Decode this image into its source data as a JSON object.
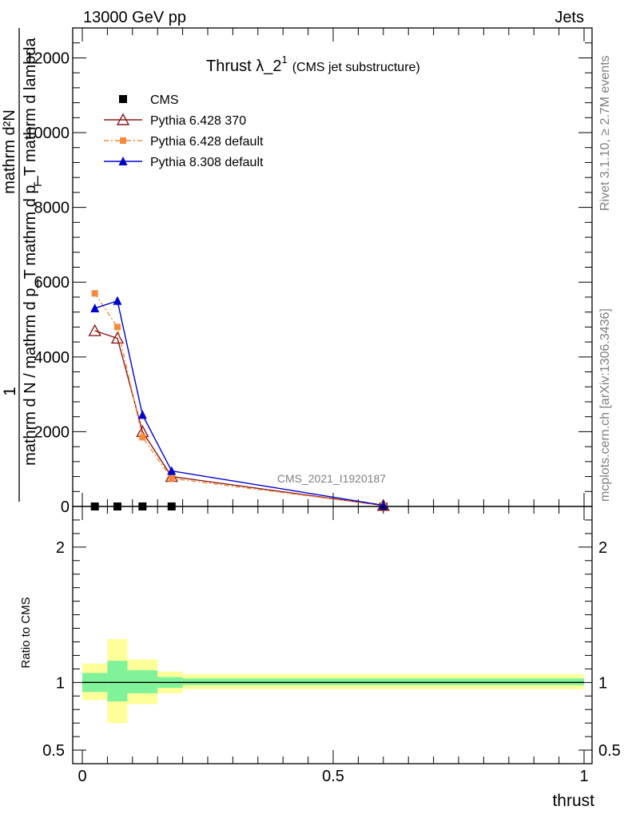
{
  "header": {
    "energy_label": "13000 GeV pp",
    "category_label": "Jets"
  },
  "side": {
    "rivet_label": "Rivet 3.1.10, ≥ 2.7M events",
    "mcplots_label": "mcplots.cern.ch [arXiv:1306.3436]"
  },
  "watermark": "CMS_2021_I1920187",
  "chart_data": [
    {
      "type": "line",
      "title": "Thrust λ_2",
      "title_sup": "1",
      "subtitle": "(CMS jet substructure)",
      "ylabel_numerator": "mathrm d²N",
      "ylabel_denominator": "mathrm d p_T mathrm d lambda",
      "ylabel_subscript": "T",
      "ylabel_left_numerator": "1",
      "ylabel_left_denominator": "mathrm d N / mathrm d p_T",
      "xlim": [
        0,
        1
      ],
      "ylim": [
        0,
        12800
      ],
      "y_ticks": [
        0,
        2000,
        4000,
        6000,
        8000,
        10000,
        12000
      ],
      "legend_position": "top-left",
      "series": [
        {
          "name": "CMS",
          "color": "#000000",
          "marker": "square",
          "x": [
            0.025,
            0.07,
            0.12,
            0.178,
            0.6
          ],
          "y": [
            0,
            0,
            0,
            0,
            0
          ]
        },
        {
          "name": "Pythia 6.428 370",
          "color": "#8b1a1a",
          "marker": "open-triangle",
          "line": "solid",
          "x": [
            0.025,
            0.07,
            0.12,
            0.178,
            0.6
          ],
          "y": [
            4700,
            4500,
            2000,
            800,
            25
          ]
        },
        {
          "name": "Pythia 6.428 default",
          "color": "#f58a3a",
          "marker": "small-square",
          "line": "dashdot",
          "x": [
            0.025,
            0.07,
            0.12,
            0.178,
            0.6
          ],
          "y": [
            5700,
            4800,
            1850,
            750,
            25
          ]
        },
        {
          "name": "Pythia 8.308 default",
          "color": "#0000cc",
          "marker": "filled-triangle",
          "line": "solid",
          "x": [
            0.025,
            0.07,
            0.12,
            0.178,
            0.6
          ],
          "y": [
            5300,
            5500,
            2450,
            950,
            30
          ]
        }
      ]
    },
    {
      "type": "area",
      "ylabel": "Ratio to CMS",
      "xlabel": "thrust",
      "xlim": [
        0,
        1
      ],
      "ylim": [
        0.4,
        2.3
      ],
      "y_ticks": [
        0.5,
        1,
        2
      ],
      "x_ticks": [
        0,
        0.5,
        1
      ],
      "reference_line": 1,
      "bins": [
        {
          "lo": 0.0,
          "hi": 0.05,
          "inner": [
            0.93,
            1.07
          ],
          "outer": [
            0.87,
            1.14
          ]
        },
        {
          "lo": 0.05,
          "hi": 0.09,
          "inner": [
            0.86,
            1.16
          ],
          "outer": [
            0.7,
            1.32
          ]
        },
        {
          "lo": 0.09,
          "hi": 0.15,
          "inner": [
            0.92,
            1.09
          ],
          "outer": [
            0.84,
            1.17
          ]
        },
        {
          "lo": 0.15,
          "hi": 0.2,
          "inner": [
            0.96,
            1.04
          ],
          "outer": [
            0.92,
            1.08
          ]
        },
        {
          "lo": 0.2,
          "hi": 1.0,
          "inner": [
            0.98,
            1.03
          ],
          "outer": [
            0.95,
            1.06
          ]
        }
      ],
      "band_colors": {
        "inner": "#7ff29a",
        "outer": "#ffff99"
      }
    }
  ]
}
